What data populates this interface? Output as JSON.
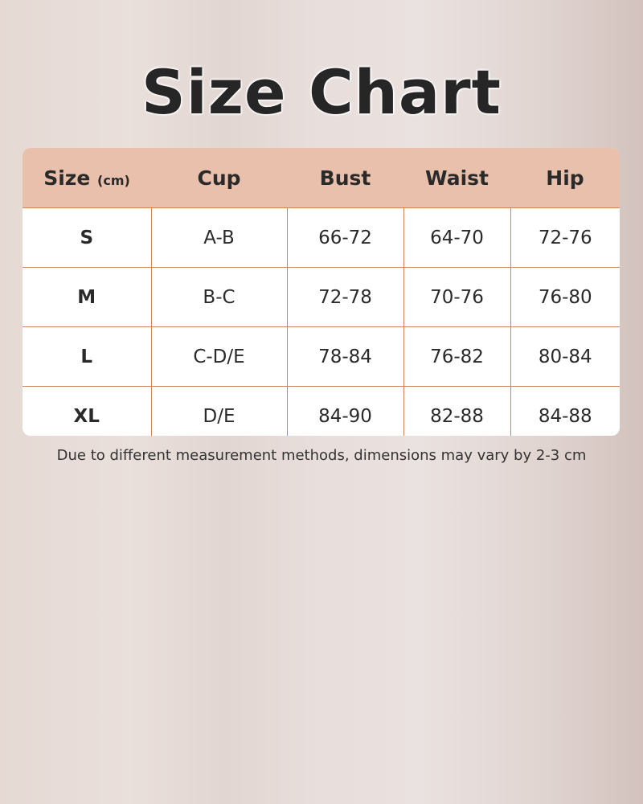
{
  "title": "Size Chart",
  "table": {
    "headers": [
      "Size",
      "Cup",
      "Bust",
      "Waist",
      "Hip"
    ],
    "unit": "(cm)",
    "rows": [
      [
        "S",
        "A-B",
        "66-72",
        "64-70",
        "72-76"
      ],
      [
        "M",
        "B-C",
        "72-78",
        "70-76",
        "76-80"
      ],
      [
        "L",
        "C-D/E",
        "78-84",
        "76-82",
        "80-84"
      ],
      [
        "XL",
        "D/E",
        "84-90",
        "82-88",
        "84-88"
      ]
    ]
  },
  "note": "Due to different measurement methods, dimensions may vary by 2-3 cm",
  "colors": {
    "header_bg": "#e8c0ab",
    "border": "#c9855f"
  }
}
